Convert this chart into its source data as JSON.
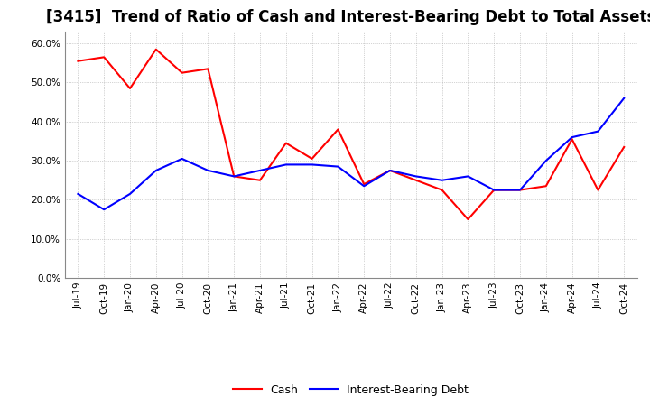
{
  "title": "[3415]  Trend of Ratio of Cash and Interest-Bearing Debt to Total Assets",
  "x_labels": [
    "Jul-19",
    "Oct-19",
    "Jan-20",
    "Apr-20",
    "Jul-20",
    "Oct-20",
    "Jan-21",
    "Apr-21",
    "Jul-21",
    "Oct-21",
    "Jan-22",
    "Apr-22",
    "Jul-22",
    "Oct-22",
    "Jan-23",
    "Apr-23",
    "Jul-23",
    "Oct-23",
    "Jan-24",
    "Apr-24",
    "Jul-24",
    "Oct-24"
  ],
  "cash": [
    55.5,
    56.5,
    48.5,
    58.5,
    52.5,
    53.5,
    26.0,
    25.0,
    34.5,
    30.5,
    38.0,
    24.0,
    27.5,
    25.0,
    22.5,
    15.0,
    22.5,
    22.5,
    23.5,
    35.5,
    22.5,
    33.5
  ],
  "interest_bearing_debt": [
    21.5,
    17.5,
    21.5,
    27.5,
    30.5,
    27.5,
    26.0,
    27.5,
    29.0,
    29.0,
    28.5,
    23.5,
    27.5,
    26.0,
    25.0,
    26.0,
    22.5,
    22.5,
    30.0,
    36.0,
    37.5,
    46.0
  ],
  "cash_color": "#FF0000",
  "debt_color": "#0000FF",
  "ylim_min": 0,
  "ylim_max": 63,
  "yticks": [
    0,
    10,
    20,
    30,
    40,
    50,
    60
  ],
  "legend_cash": "Cash",
  "legend_debt": "Interest-Bearing Debt",
  "bg_color": "#FFFFFF",
  "grid_color": "#AAAAAA",
  "title_fontsize": 12,
  "tick_fontsize": 7.5
}
